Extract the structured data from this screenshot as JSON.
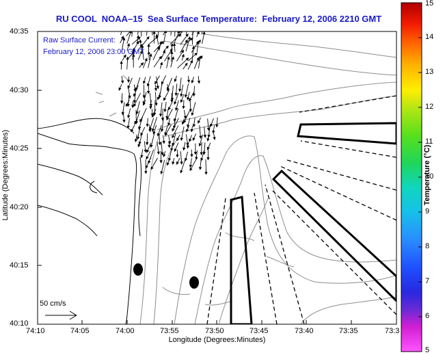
{
  "title": "RU COOL  NOAA–15  Sea Surface Temperature:  February 12, 2006 2210 GMT",
  "overlay": {
    "line1": "Raw Surface Current:",
    "line2": "February 12, 2006 23:00 GMT"
  },
  "scale_bar": {
    "label": "50 cm/s",
    "value_cm_s": 50
  },
  "axes": {
    "xlabel": "Longitude (Degrees:Minutes)",
    "ylabel": "Latitude (Degrees:Minutes)",
    "x_ticks": [
      "74:10",
      "74:05",
      "74:00",
      "73:55",
      "73:50",
      "73:45",
      "73:40",
      "73:35",
      "73:3"
    ],
    "y_ticks": [
      "40:35",
      "40:30",
      "40:25",
      "40:20",
      "40:15",
      "40:10"
    ]
  },
  "colorbar": {
    "label": "Temperature (°C)",
    "ticks": [
      "15",
      "14",
      "13",
      "12",
      "11",
      "10",
      "9",
      "8",
      "7",
      "6",
      "5"
    ],
    "range": [
      5,
      15
    ]
  },
  "colors": {
    "title_text": "#1a1acc",
    "coastline": "#000000",
    "bathymetry": "#8c8c8c",
    "vectors": "#000000"
  }
}
